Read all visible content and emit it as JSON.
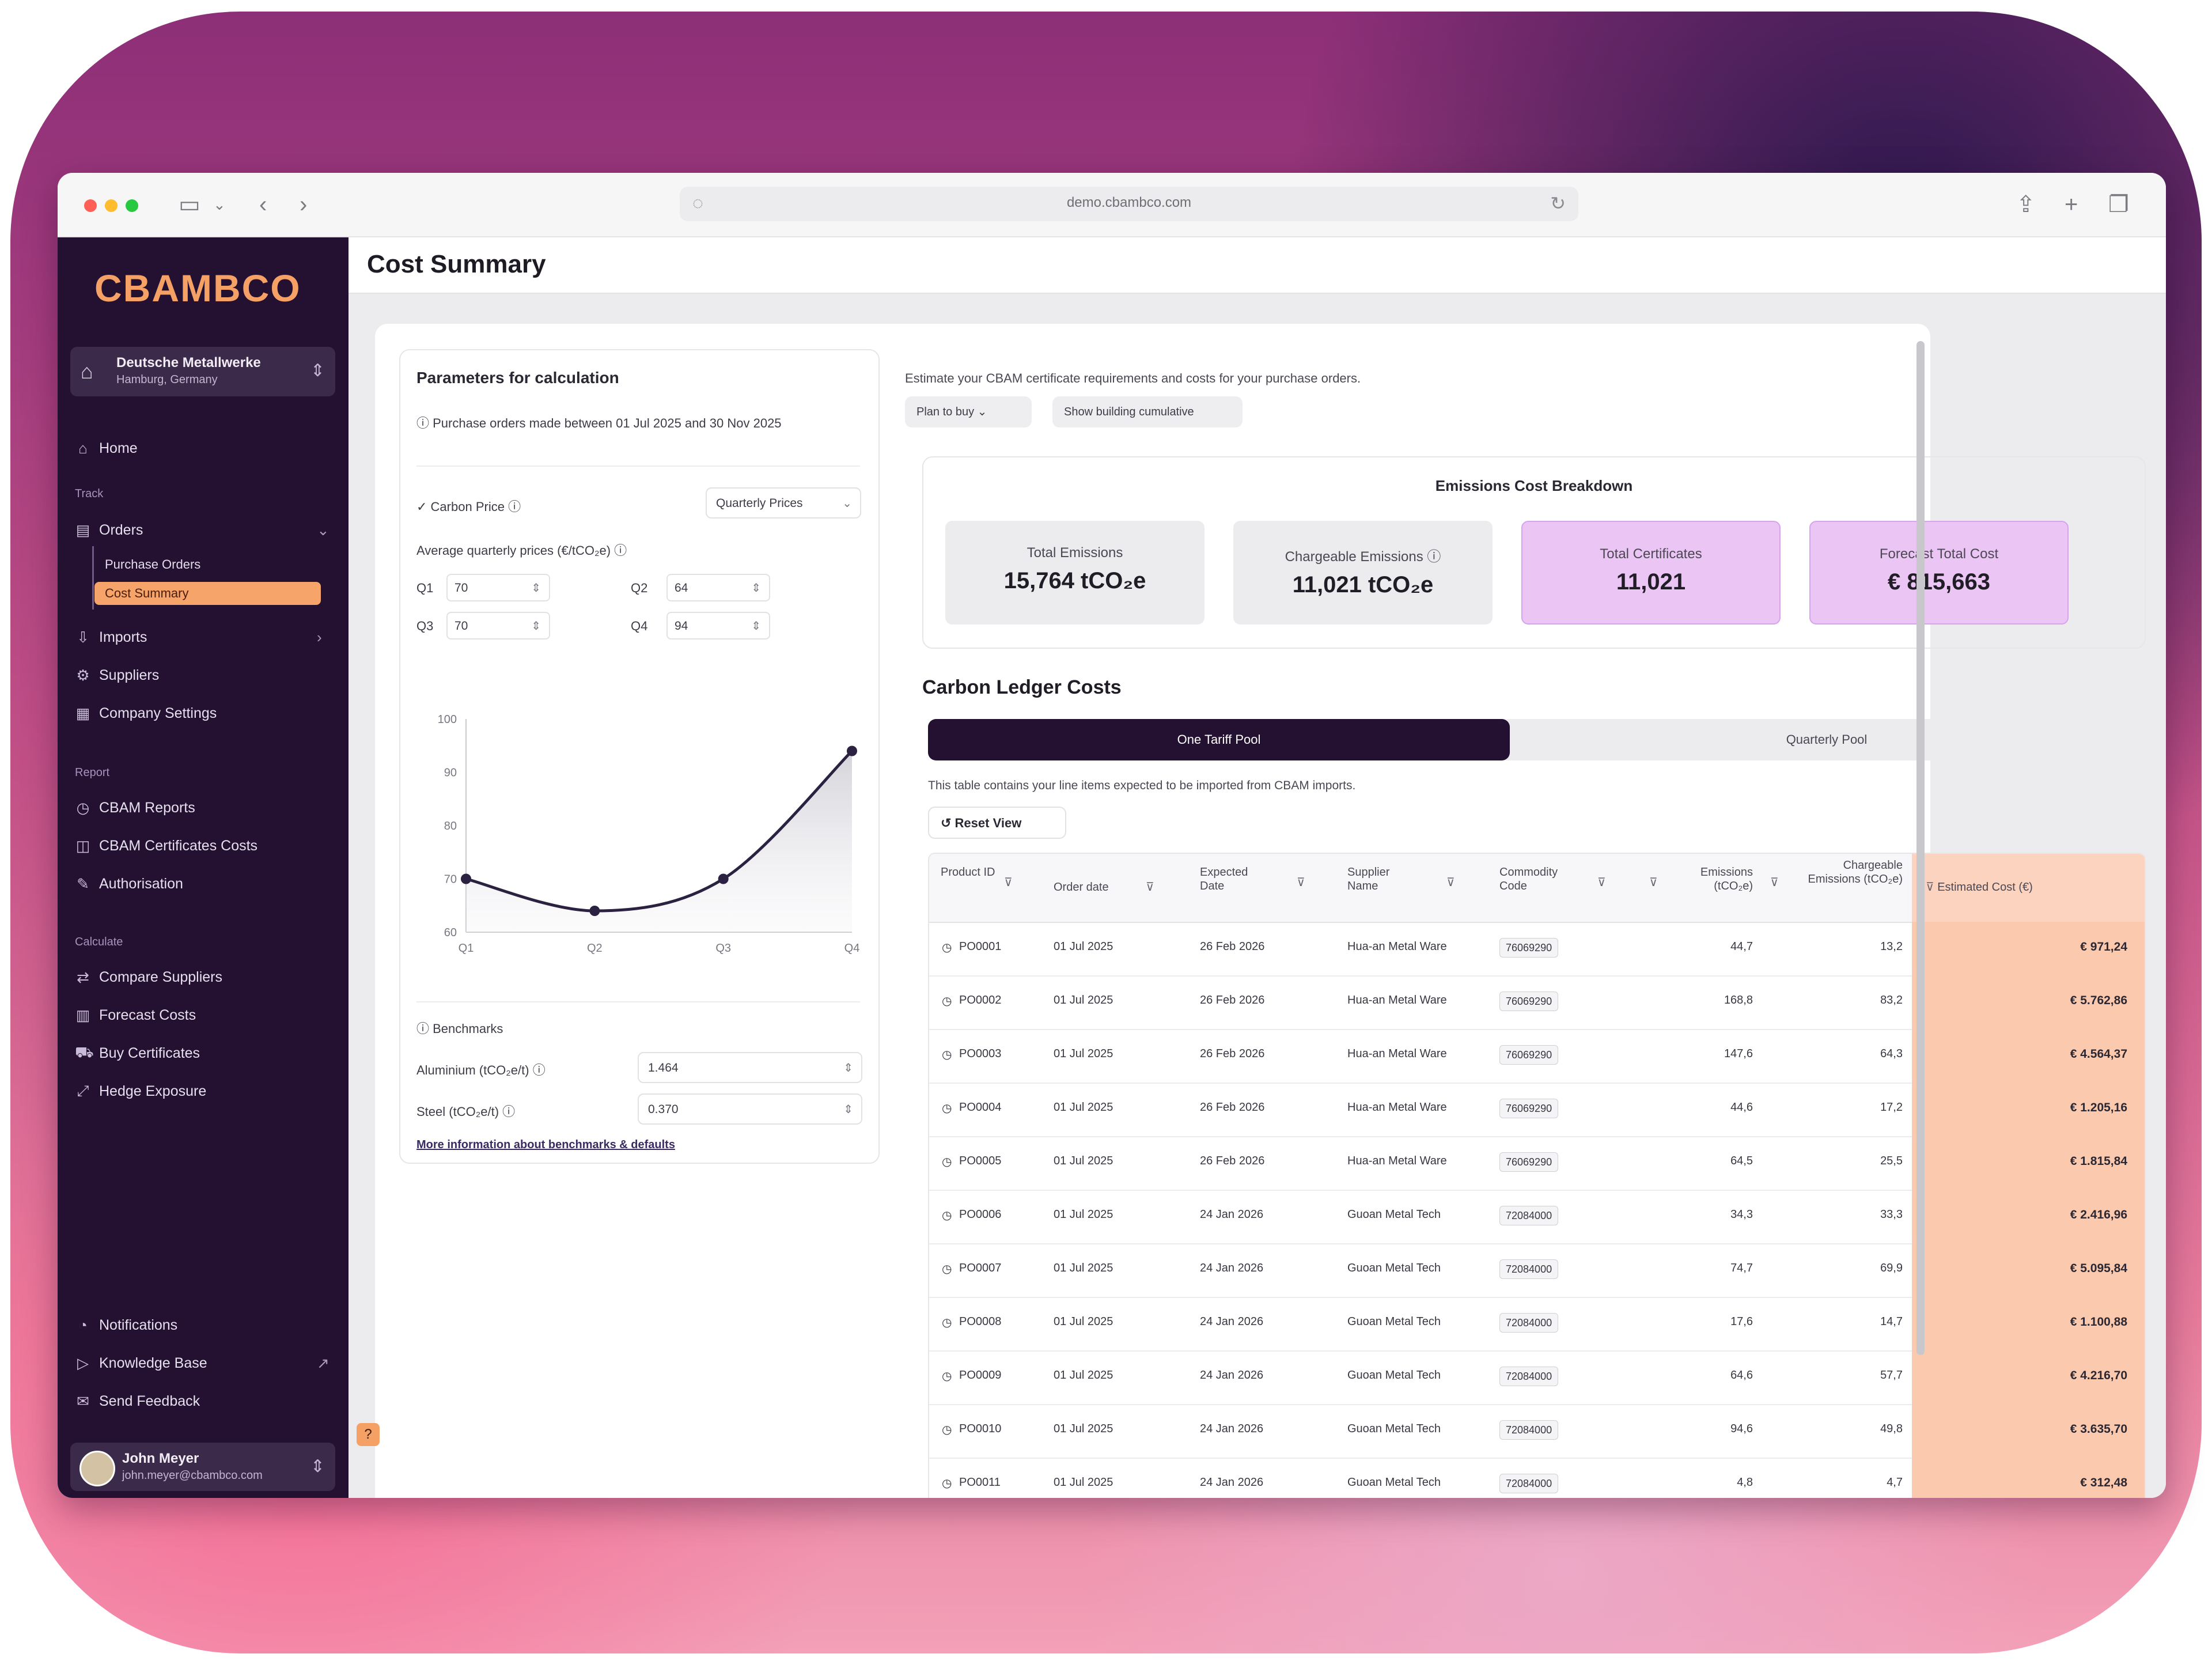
{
  "browser": {
    "url": "demo.cbambco.com"
  },
  "sidebar": {
    "brand": "CBAMBCO",
    "account": {
      "name": "Deutsche Metallwerke",
      "sub": "Hamburg, Germany"
    },
    "home": "Home",
    "section_track": "Track",
    "orders": "Orders",
    "orders_sub": [
      "Purchase Orders",
      "Cost Summary"
    ],
    "imports": "Imports",
    "suppliers": "Suppliers",
    "company_settings": "Company Settings",
    "section_report": "Report",
    "report_items": [
      "CBAM Reports",
      "CBAM Certificates Costs",
      "Authorisation"
    ],
    "section_calculate": "Calculate",
    "calculate_items": [
      "Compare Suppliers",
      "Forecast Costs",
      "Buy Certificates",
      "Hedge Exposure"
    ],
    "bottom_items": [
      "Notifications",
      "Knowledge Base",
      "Send Feedback"
    ],
    "user": {
      "name": "John Meyer",
      "email": "john.meyer@cbambco.com"
    }
  },
  "page": {
    "title": "Cost Summary"
  },
  "params": {
    "title": "Parameters for calculation",
    "info": "Purchase orders made between 01 Jul 2025 and 30 Nov 2025",
    "carbon_price_label": "Carbon Price",
    "carbon_price_mode": "Quarterly Prices",
    "avg_price_label": "Average quarterly prices (€/tCO₂e)",
    "quarters": [
      {
        "q": "Q1",
        "value": "70"
      },
      {
        "q": "Q2",
        "value": "64"
      },
      {
        "q": "Q3",
        "value": "70"
      },
      {
        "q": "Q4",
        "value": "94"
      }
    ],
    "benchmarks_label": "Benchmarks",
    "aluminium_label": "Aluminium (tCO₂e/t)",
    "aluminium_value": "1.464",
    "steel_label": "Steel (tCO₂e/t)",
    "steel_value": "0.370",
    "link": "More information about benchmarks & defaults"
  },
  "price_chart": {
    "y_ticks": [
      "100",
      "90",
      "80",
      "70",
      "60"
    ],
    "x_ticks": [
      "Q1",
      "Q2",
      "Q3",
      "Q4"
    ]
  },
  "chart_data": {
    "type": "line",
    "categories": [
      "Q1",
      "Q2",
      "Q3",
      "Q4"
    ],
    "values": [
      70,
      64,
      70,
      94
    ],
    "ylim": [
      60,
      100
    ]
  },
  "intro": {
    "text": "Estimate your CBAM certificate requirements and costs for your purchase orders.",
    "filter1": "Plan to buy",
    "filter2": "Show building cumulative"
  },
  "breakdown": {
    "title": "Emissions Cost Breakdown",
    "kpis": [
      {
        "label": "Total Emissions",
        "value": "15,764 tCO₂e"
      },
      {
        "label": "Chargeable Emissions",
        "value": "11,021 tCO₂e"
      },
      {
        "label": "Total Certificates",
        "value": "11,021"
      },
      {
        "label": "Forecast Total Cost",
        "value": "€ 815,663"
      }
    ]
  },
  "ledger": {
    "title": "Carbon Ledger Costs",
    "tab_active": "One Tariff Pool",
    "tab_inactive": "Quarterly Pool",
    "note": "This table contains your line items expected to be imported from CBAM imports.",
    "reset": "Reset View",
    "columns": [
      "Product ID",
      "Order date",
      "Expected Date",
      "Supplier Name",
      "Commodity Code",
      "",
      "Emissions (tCO₂e)",
      "Chargeable Emissions (tCO₂e)",
      "Estimated Cost (€)"
    ],
    "rows": [
      {
        "id": "PO0001",
        "order": "01 Jul 2025",
        "expected": "26 Feb 2026",
        "supplier": "Hua-an Metal Ware",
        "code": "76069290",
        "emissions": "44,7",
        "chargeable": "13,2",
        "cost": "€ 971,24"
      },
      {
        "id": "PO0002",
        "order": "01 Jul 2025",
        "expected": "26 Feb 2026",
        "supplier": "Hua-an Metal Ware",
        "code": "76069290",
        "emissions": "168,8",
        "chargeable": "83,2",
        "cost": "€ 5.762,86"
      },
      {
        "id": "PO0003",
        "order": "01 Jul 2025",
        "expected": "26 Feb 2026",
        "supplier": "Hua-an Metal Ware",
        "code": "76069290",
        "emissions": "147,6",
        "chargeable": "64,3",
        "cost": "€ 4.564,37"
      },
      {
        "id": "PO0004",
        "order": "01 Jul 2025",
        "expected": "26 Feb 2026",
        "supplier": "Hua-an Metal Ware",
        "code": "76069290",
        "emissions": "44,6",
        "chargeable": "17,2",
        "cost": "€ 1.205,16"
      },
      {
        "id": "PO0005",
        "order": "01 Jul 2025",
        "expected": "26 Feb 2026",
        "supplier": "Hua-an Metal Ware",
        "code": "76069290",
        "emissions": "64,5",
        "chargeable": "25,5",
        "cost": "€ 1.815,84"
      },
      {
        "id": "PO0006",
        "order": "01 Jul 2025",
        "expected": "24 Jan 2026",
        "supplier": "Guoan Metal Tech",
        "code": "72084000",
        "emissions": "34,3",
        "chargeable": "33,3",
        "cost": "€ 2.416,96"
      },
      {
        "id": "PO0007",
        "order": "01 Jul 2025",
        "expected": "24 Jan 2026",
        "supplier": "Guoan Metal Tech",
        "code": "72084000",
        "emissions": "74,7",
        "chargeable": "69,9",
        "cost": "€ 5.095,84"
      },
      {
        "id": "PO0008",
        "order": "01 Jul 2025",
        "expected": "24 Jan 2026",
        "supplier": "Guoan Metal Tech",
        "code": "72084000",
        "emissions": "17,6",
        "chargeable": "14,7",
        "cost": "€ 1.100,88"
      },
      {
        "id": "PO0009",
        "order": "01 Jul 2025",
        "expected": "24 Jan 2026",
        "supplier": "Guoan Metal Tech",
        "code": "72084000",
        "emissions": "64,6",
        "chargeable": "57,7",
        "cost": "€ 4.216,70"
      },
      {
        "id": "PO0010",
        "order": "01 Jul 2025",
        "expected": "24 Jan 2026",
        "supplier": "Guoan Metal Tech",
        "code": "72084000",
        "emissions": "94,6",
        "chargeable": "49,8",
        "cost": "€ 3.635,70"
      },
      {
        "id": "PO0011",
        "order": "01 Jul 2025",
        "expected": "24 Jan 2026",
        "supplier": "Guoan Metal Tech",
        "code": "72084000",
        "emissions": "4,8",
        "chargeable": "4,7",
        "cost": "€ 312,48"
      }
    ]
  }
}
